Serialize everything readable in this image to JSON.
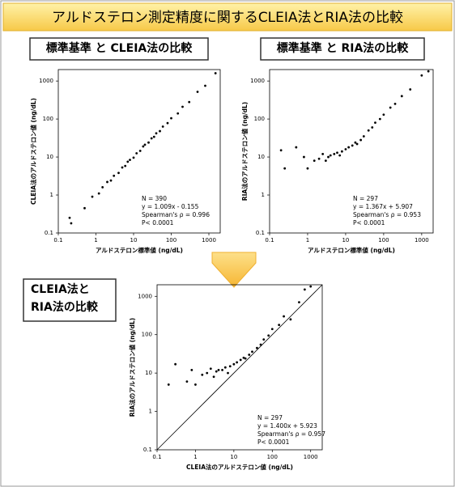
{
  "title": "アルドステロン測定精度に関するCLEIA法とRIA法の比較",
  "chart_data": [
    {
      "type": "scatter",
      "title": "標準基準 と CLEIA法の比較",
      "xlabel": "アルドステロン標準値 (ng/dL)",
      "ylabel": "CLEIA法のアルドステロン値 (ng/dL)",
      "annotations": [
        "N = 390",
        "y = 1.009x - 0.155",
        "Spearman's ρ = 0.996",
        "P< 0.0001"
      ],
      "x": [
        0.2,
        0.22,
        0.5,
        0.8,
        1.2,
        1.5,
        2,
        2.5,
        3,
        4,
        5,
        6,
        7,
        8,
        10,
        12,
        15,
        18,
        20,
        25,
        30,
        35,
        40,
        50,
        60,
        80,
        100,
        150,
        200,
        300,
        500,
        800,
        1500
      ],
      "y": [
        0.25,
        0.18,
        0.45,
        0.9,
        1.1,
        1.6,
        2.2,
        2.4,
        3.2,
        3.8,
        5.3,
        5.8,
        7.5,
        8.4,
        9.6,
        12.5,
        14.5,
        19,
        21,
        24,
        31,
        34,
        42,
        48,
        63,
        78,
        105,
        140,
        210,
        280,
        520,
        750,
        1600
      ],
      "color": "#000000",
      "log_scale": true,
      "xlim": [
        0.1,
        2000
      ],
      "ylim": [
        0.1,
        2000
      ],
      "xticks": [
        0.1,
        1,
        10,
        100,
        1000
      ],
      "yticks": [
        0.1,
        1,
        10,
        100,
        1000
      ]
    },
    {
      "type": "scatter",
      "title": "標準基準 と RIA法の比較",
      "xlabel": "アルドステロン標準値 (ng/dL)",
      "ylabel": "RIA法のアルドステロン値 (ng/dL)",
      "annotations": [
        "N = 297",
        "y = 1.367x + 5.907",
        "Spearman's ρ = 0.953",
        "P< 0.0001"
      ],
      "x": [
        0.2,
        0.25,
        0.5,
        0.8,
        1,
        1.5,
        2,
        2.5,
        3,
        3.5,
        4,
        5,
        6,
        7,
        8,
        10,
        12,
        15,
        18,
        20,
        25,
        30,
        40,
        50,
        60,
        80,
        100,
        150,
        200,
        300,
        500,
        1000,
        1500
      ],
      "y": [
        15,
        5,
        18,
        10,
        5,
        8,
        9,
        12,
        8,
        10,
        11,
        12,
        13,
        11,
        14,
        16,
        18,
        20,
        24,
        22,
        28,
        35,
        50,
        60,
        80,
        100,
        130,
        200,
        250,
        400,
        600,
        1400,
        1800
      ],
      "color": "#000000",
      "log_scale": true,
      "xlim": [
        0.1,
        2000
      ],
      "ylim": [
        0.1,
        2000
      ],
      "xticks": [
        0.1,
        1,
        10,
        100,
        1000
      ],
      "yticks": [
        0.1,
        1,
        10,
        100,
        1000
      ]
    },
    {
      "type": "scatter",
      "title_lines": [
        "CLEIA法と",
        "RIA法の比較"
      ],
      "xlabel": "CLEIA法のアルドステロン値 (ng/dL)",
      "ylabel": "RIA法のアルドステロン値 (ng/dL)",
      "annotations": [
        "N = 297",
        "y = 1.400x + 5.923",
        "Spearman's ρ = 0.957",
        "P< 0.0001"
      ],
      "x": [
        0.3,
        0.2,
        0.6,
        0.8,
        1,
        1.5,
        2,
        2.5,
        3,
        3.5,
        4,
        5,
        6,
        7,
        8,
        10,
        12,
        15,
        18,
        20,
        25,
        30,
        40,
        50,
        60,
        80,
        100,
        150,
        200,
        300,
        500,
        700,
        1000
      ],
      "y": [
        17,
        5,
        6,
        12,
        5,
        9,
        10,
        13,
        8,
        11,
        12,
        12,
        14,
        10,
        15,
        17,
        19,
        22,
        25,
        24,
        30,
        36,
        45,
        55,
        75,
        95,
        140,
        180,
        300,
        250,
        700,
        1500,
        1800
      ],
      "color": "#000000",
      "log_scale": true,
      "identity_line": true,
      "xlim": [
        0.1,
        2000
      ],
      "ylim": [
        0.1,
        2000
      ],
      "xticks": [
        0.1,
        1,
        10,
        100,
        1000
      ],
      "yticks": [
        0.1,
        1,
        10,
        100,
        1000
      ]
    }
  ]
}
